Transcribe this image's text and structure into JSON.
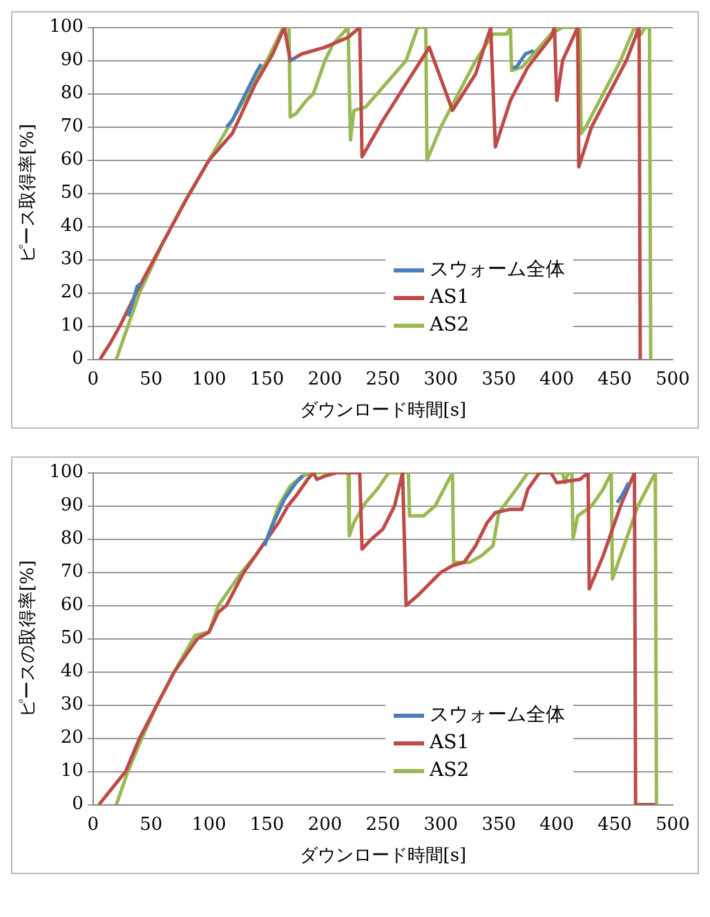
{
  "chart_data": [
    {
      "type": "line",
      "xlabel": "ダウンロード時間[s]",
      "ylabel": "ピース取得率[%]",
      "xlim": [
        0,
        500
      ],
      "xticks": [
        0,
        50,
        100,
        150,
        200,
        250,
        300,
        350,
        400,
        450,
        500
      ],
      "ylim": [
        0,
        100
      ],
      "yticks": [
        0,
        10,
        20,
        30,
        40,
        50,
        60,
        70,
        80,
        90,
        100
      ],
      "grid": "y",
      "legend": "bottom right",
      "marker": "none",
      "line_style": "solid",
      "series": [
        {
          "name": "スウォーム全体",
          "color": "#4a7ebb",
          "x": [
            30,
            34,
            38,
            42,
            44,
            115,
            120,
            140,
            145,
            148,
            170,
            175,
            180,
            362,
            365,
            373,
            380
          ],
          "values": [
            13,
            17,
            22,
            23,
            null,
            70,
            72,
            86,
            89,
            null,
            90,
            91,
            null,
            88,
            88,
            92,
            93
          ]
        },
        {
          "name": "AS1",
          "color": "#be4b48",
          "x": [
            6,
            15,
            23,
            40,
            60,
            80,
            100,
            120,
            140,
            155,
            165,
            170,
            180,
            200,
            220,
            230,
            232,
            250,
            270,
            290,
            310,
            330,
            343,
            347,
            360,
            375,
            395,
            398,
            400,
            405,
            418,
            419,
            430,
            445,
            460,
            471,
            472
          ],
          "values": [
            0,
            5,
            10,
            22,
            35,
            48,
            60,
            68,
            83,
            92,
            100,
            90,
            92,
            94,
            97,
            100,
            61,
            72,
            83,
            94,
            75,
            86,
            100,
            64,
            78,
            88,
            97,
            100,
            78,
            90,
            100,
            58,
            70,
            80,
            90,
            100,
            0
          ]
        },
        {
          "name": "AS2",
          "color": "#98b954",
          "x": [
            20,
            30,
            40,
            60,
            80,
            100,
            120,
            140,
            150,
            164,
            169,
            170,
            175,
            184,
            190,
            200,
            207,
            220,
            222,
            225,
            235,
            250,
            270,
            280,
            287,
            288,
            300,
            315,
            330,
            345,
            357,
            360,
            361,
            370,
            380,
            395,
            405,
            420,
            421,
            425,
            440,
            455,
            467,
            473,
            476,
            480,
            481
          ],
          "values": [
            0,
            10,
            20,
            35,
            48,
            60,
            72,
            84,
            90,
            100,
            100,
            73,
            74,
            78,
            80,
            90,
            95,
            100,
            66,
            75,
            76,
            82,
            90,
            100,
            100,
            60,
            70,
            80,
            90,
            98,
            98,
            100,
            87,
            88,
            92,
            98,
            100,
            100,
            68,
            70,
            80,
            90,
            100,
            98,
            100,
            100,
            0
          ]
        }
      ]
    },
    {
      "type": "line",
      "xlabel": "ダウンロード時間[s]",
      "ylabel": "ピースの取得率[%]",
      "xlim": [
        0,
        500
      ],
      "xticks": [
        0,
        50,
        100,
        150,
        200,
        250,
        300,
        350,
        400,
        450,
        500
      ],
      "ylim": [
        0,
        100
      ],
      "yticks": [
        0,
        10,
        20,
        30,
        40,
        50,
        60,
        70,
        80,
        90,
        100
      ],
      "grid": "y",
      "legend": "bottom right",
      "marker": "none",
      "line_style": "solid",
      "series": [
        {
          "name": "スウォーム全体",
          "color": "#4a7ebb",
          "x": [
            148,
            152,
            157,
            165,
            175,
            181,
            184,
            452,
            456,
            462
          ],
          "values": [
            78,
            82,
            86,
            92,
            97,
            99,
            null,
            91,
            93,
            97
          ]
        },
        {
          "name": "AS1",
          "color": "#be4b48",
          "x": [
            5,
            28,
            40,
            55,
            70,
            90,
            100,
            108,
            115,
            130,
            140,
            150,
            160,
            168,
            175,
            185,
            190,
            193,
            200,
            210,
            230,
            232,
            240,
            250,
            260,
            267,
            270,
            280,
            300,
            310,
            320,
            330,
            340,
            347,
            360,
            370,
            375,
            385,
            395,
            400,
            420,
            427,
            428,
            440,
            455,
            467,
            468,
            485
          ],
          "values": [
            0,
            10,
            20,
            30,
            40,
            50,
            52,
            58,
            60,
            70,
            75,
            80,
            85,
            90,
            93,
            98,
            100,
            98,
            99,
            100,
            100,
            77,
            80,
            83,
            90,
            100,
            60,
            63,
            70,
            72,
            73,
            78,
            85,
            88,
            89,
            89,
            95,
            100,
            100,
            97,
            98,
            100,
            65,
            75,
            90,
            100,
            0,
            0
          ]
        },
        {
          "name": "AS2",
          "color": "#98b954",
          "x": [
            20,
            30,
            42,
            55,
            70,
            78,
            88,
            100,
            108,
            118,
            128,
            140,
            150,
            160,
            170,
            180,
            190,
            220,
            221,
            225,
            235,
            245,
            255,
            272,
            273,
            285,
            295,
            310,
            311,
            325,
            335,
            345,
            350,
            365,
            375,
            405,
            407,
            410,
            413,
            414,
            418,
            430,
            440,
            447,
            448,
            460,
            470,
            485,
            486
          ],
          "values": [
            0,
            10,
            20,
            30,
            40,
            45,
            51,
            52,
            60,
            65,
            70,
            75,
            80,
            90,
            96,
            99,
            100,
            100,
            81,
            85,
            91,
            95,
            100,
            100,
            87,
            87,
            90,
            100,
            73,
            73,
            75,
            78,
            88,
            95,
            100,
            100,
            97,
            100,
            100,
            80,
            87,
            90,
            95,
            100,
            68,
            80,
            90,
            100,
            0
          ]
        }
      ]
    }
  ]
}
